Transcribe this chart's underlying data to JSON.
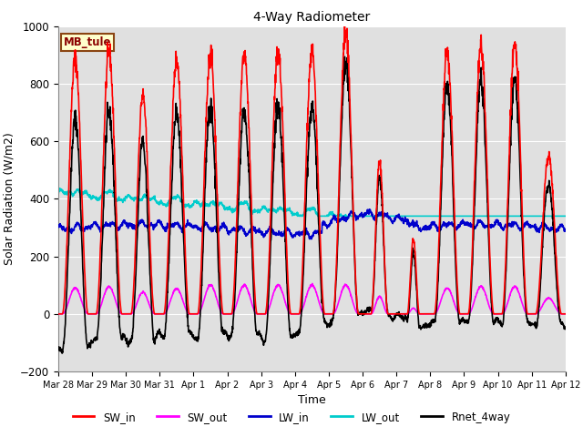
{
  "title": "4-Way Radiometer",
  "xlabel": "Time",
  "ylabel": "Solar Radiation (W/m2)",
  "station_label": "MB_tule",
  "ylim": [
    -200,
    1000
  ],
  "tick_labels": [
    "Mar 28",
    "Mar 29",
    "Mar 30",
    "Mar 31",
    "Apr 1",
    "Apr 2",
    "Apr 3",
    "Apr 4",
    "Apr 5",
    "Apr 6",
    "Apr 7",
    "Apr 8",
    "Apr 9",
    "Apr 10",
    "Apr 11",
    "Apr 12"
  ],
  "axes_facecolor": "#e0e0e0",
  "figure_facecolor": "#ffffff",
  "grid_color": "#ffffff",
  "lines": {
    "SW_in": {
      "color": "#ff0000",
      "lw": 1.2
    },
    "SW_out": {
      "color": "#ff00ff",
      "lw": 1.2
    },
    "LW_in": {
      "color": "#0000cc",
      "lw": 1.2
    },
    "LW_out": {
      "color": "#00cccc",
      "lw": 1.2
    },
    "Rnet_4way": {
      "color": "#000000",
      "lw": 1.2
    }
  },
  "legend_entries": [
    "SW_in",
    "SW_out",
    "LW_in",
    "LW_out",
    "Rnet_4way"
  ],
  "legend_colors": [
    "#ff0000",
    "#ff00ff",
    "#0000cc",
    "#00cccc",
    "#000000"
  ]
}
